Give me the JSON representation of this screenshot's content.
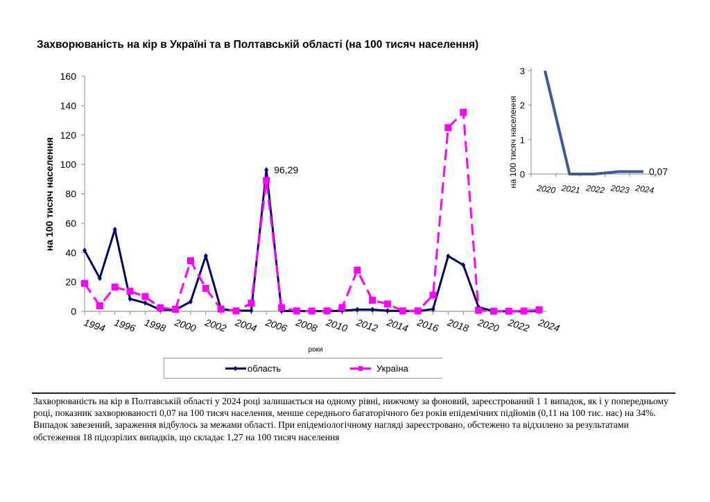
{
  "chart_data": [
    {
      "type": "line",
      "title": "Захворюваність на кір в Україні та в Полтавській області (на 100 тисяч населення)",
      "xlabel": "роки",
      "ylabel": "на 100 тисяч населення",
      "ylim": [
        0,
        160
      ],
      "yticks": [
        "0",
        "20",
        "40",
        "60",
        "80",
        "100",
        "120",
        "140",
        "160"
      ],
      "x": [
        1994,
        1995,
        1996,
        1997,
        1998,
        1999,
        2000,
        2001,
        2002,
        2003,
        2004,
        2005,
        2006,
        2007,
        2008,
        2009,
        2010,
        2011,
        2012,
        2013,
        2014,
        2015,
        2016,
        2017,
        2018,
        2019,
        2020,
        2021,
        2022,
        2023,
        2024
      ],
      "xtick_labels": [
        "1994",
        "1996",
        "1998",
        "2000",
        "2002",
        "2004",
        "2006",
        "2008",
        "2010",
        "2012",
        "2014",
        "2016",
        "2018",
        "2020",
        "2022",
        "2024"
      ],
      "series": [
        {
          "name": "область",
          "color": "#000066",
          "style": "solid",
          "marker": "diamond",
          "values": [
            41.5,
            22.5,
            55.7,
            8.5,
            5.7,
            1.0,
            1.0,
            6.6,
            37.7,
            1.5,
            0.5,
            0.5,
            96.29,
            0.3,
            0.2,
            0.1,
            0.1,
            0.4,
            1.2,
            1.2,
            0.4,
            0.2,
            0.2,
            1.5,
            37.6,
            31.5,
            3.0,
            0.0,
            0.0,
            0.07,
            0.07
          ]
        },
        {
          "name": "Україна",
          "color": "#ff00ff",
          "style": "dashed",
          "marker": "square",
          "values": [
            19.0,
            3.8,
            16.5,
            13.7,
            10.0,
            2.4,
            1.4,
            34.4,
            15.6,
            1.5,
            0.3,
            5.5,
            89.0,
            2.5,
            0.3,
            0.2,
            0.3,
            2.5,
            28.0,
            7.5,
            5.0,
            0.3,
            0.3,
            11.0,
            125.0,
            135.5,
            0.7,
            0.1,
            0.1,
            0.2,
            1.0
          ]
        }
      ],
      "annotations": [
        {
          "x": 2006,
          "series": "область",
          "text": "96,29"
        }
      ],
      "legend": {
        "placement": "bottom",
        "items": [
          "область",
          "Україна"
        ]
      },
      "grid": false
    },
    {
      "type": "line",
      "title": "",
      "xlabel": "",
      "ylabel": "на 100 тисяч населення",
      "ylim": [
        0,
        3
      ],
      "yticks": [
        "0",
        "1",
        "2",
        "3"
      ],
      "x": [
        "2020",
        "2021",
        "2022",
        "2023",
        "2024"
      ],
      "series": [
        {
          "name": "область",
          "color": "#3c5a9a",
          "values": [
            3.0,
            0.0,
            0.0,
            0.07,
            0.07
          ]
        }
      ],
      "annotations": [
        {
          "x": "2024",
          "text": "0,07"
        }
      ],
      "placement": "top-right inset"
    }
  ],
  "description": {
    "paragraph1": "Захворюваність на кір в Полтавській області у 2024 році залишається на одному рівні, нижчому за фоновий, зареєстрований 1 1 випадок, як і у попередньому році, показник захворюваності 0,07 на 100 тисяч населення, менше середнього багаторічного без років епідемічних підйомів (0,11 на 100 тис. нас) на 34%.",
    "paragraph2": "Випадок завезений, зараження відбулось за межами області. При епідеміологічному нагляді зареєстровано, обстежено та відхилено за результатами обстеження 18 підозрілих випадків, що складає 1,27 на 100 тисяч населення"
  }
}
